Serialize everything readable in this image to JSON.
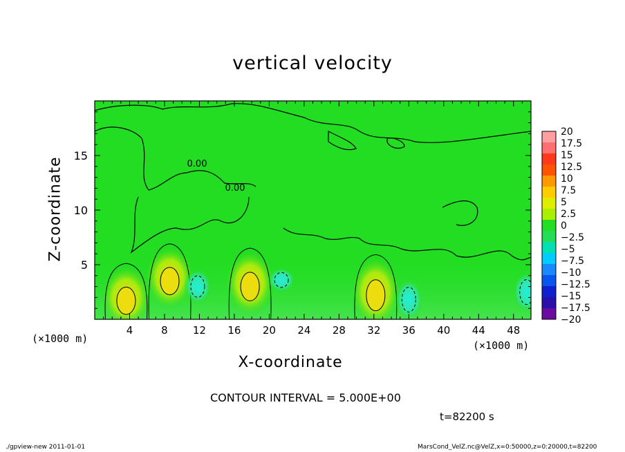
{
  "chart_data": {
    "type": "heatmap",
    "title": "vertical velocity",
    "xlabel": "X-coordinate",
    "ylabel": "Z-coordinate",
    "x_unit_left": "(×1000 m)",
    "x_unit_right": "(×1000 m)",
    "xlim": [
      0,
      50
    ],
    "ylim": [
      0,
      20
    ],
    "x_ticks": [
      "4",
      "8",
      "12",
      "16",
      "20",
      "24",
      "28",
      "32",
      "36",
      "40",
      "44",
      "48"
    ],
    "y_ticks": [
      "5",
      "10",
      "15"
    ],
    "contour_labels": [
      "0.00",
      "0.00"
    ],
    "colorbar": {
      "labels": [
        "20",
        "17.5",
        "15",
        "12.5",
        "10",
        "7.5",
        "5",
        "2.5",
        "0",
        "−2.5",
        "−5",
        "−7.5",
        "−10",
        "−12.5",
        "−15",
        "−17.5",
        "−20"
      ],
      "colors": [
        "#ff9f9f",
        "#ff7070",
        "#ff3a1a",
        "#ff5500",
        "#ff9900",
        "#ffcc00",
        "#ddee00",
        "#aaee00",
        "#22dd22",
        "#22dd55",
        "#00e0b0",
        "#00ccff",
        "#1a88ff",
        "#0a55ee",
        "#1020cc",
        "#2a10aa",
        "#6a0aa0"
      ]
    },
    "updrafts": [
      {
        "x": 3.6,
        "z": 1.7,
        "w": 7.5
      },
      {
        "x": 8.6,
        "z": 3.5,
        "w": 7.5
      },
      {
        "x": 17.8,
        "z": 3.0,
        "w": 8
      },
      {
        "x": 32.2,
        "z": 2.2,
        "w": 9
      }
    ],
    "downdrafts": [
      {
        "x": 11.8,
        "z": 3.0,
        "w": -4
      },
      {
        "x": 21.4,
        "z": 3.6,
        "w": -2
      },
      {
        "x": 36.0,
        "z": 1.8,
        "w": -5
      },
      {
        "x": 49.5,
        "z": 2.5,
        "w": -5
      }
    ],
    "contour_interval": "CONTOUR INTERVAL = 5.000E+00",
    "time": "t=82200 s"
  },
  "footer": {
    "left": "./gpview-new   2011-01-01",
    "right": "MarsCond_VelZ.nc@VelZ,x=0:50000,z=0:20000,t=82200"
  }
}
